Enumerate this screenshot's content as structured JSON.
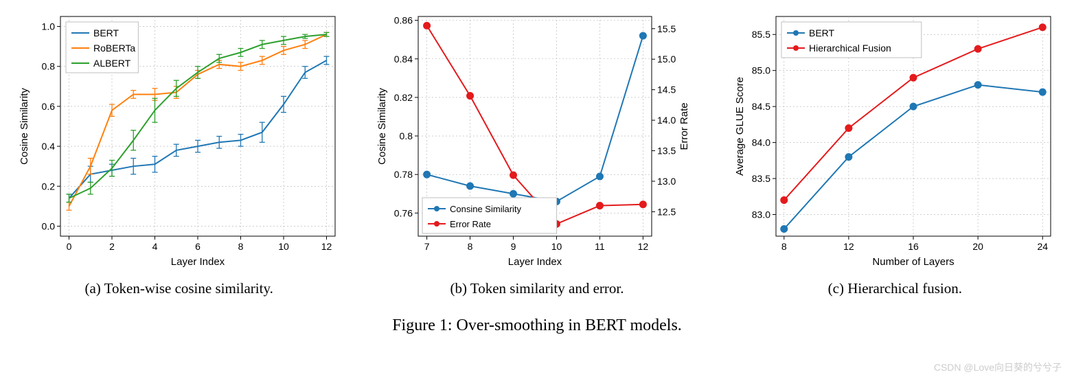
{
  "figure_caption": "Figure 1: Over-smoothing in BERT models.",
  "watermark": "CSDN @Love向日葵的兮兮子",
  "panel_a": {
    "subcaption": "(a)  Token-wise cosine similarity.",
    "type": "line-errorbar",
    "xlabel": "Layer Index",
    "ylabel": "Cosine Similarity",
    "x_ticks": [
      0,
      2,
      4,
      6,
      8,
      10,
      12
    ],
    "y_ticks": [
      0.0,
      0.2,
      0.4,
      0.6,
      0.8,
      1.0
    ],
    "xlim": [
      -0.4,
      12.4
    ],
    "ylim": [
      -0.05,
      1.05
    ],
    "background_color": "#ffffff",
    "grid_color": "#b0b0b0",
    "axis_fontsize": 14,
    "label_fontsize": 15,
    "legend_fontsize": 14,
    "legend_pos": "upper-left",
    "series": [
      {
        "name": "BERT",
        "color": "#1f77b4",
        "linewidth": 2,
        "marker": "none",
        "x": [
          0,
          1,
          2,
          3,
          4,
          5,
          6,
          7,
          8,
          9,
          10,
          11,
          12
        ],
        "y": [
          0.14,
          0.26,
          0.28,
          0.3,
          0.31,
          0.38,
          0.4,
          0.42,
          0.43,
          0.47,
          0.61,
          0.77,
          0.83
        ],
        "yerr": [
          0.02,
          0.04,
          0.03,
          0.04,
          0.04,
          0.03,
          0.03,
          0.03,
          0.03,
          0.05,
          0.04,
          0.03,
          0.02
        ]
      },
      {
        "name": "RoBERTa",
        "color": "#ff7f0e",
        "linewidth": 2,
        "marker": "none",
        "x": [
          0,
          1,
          2,
          3,
          4,
          5,
          6,
          7,
          8,
          9,
          10,
          11,
          12
        ],
        "y": [
          0.1,
          0.3,
          0.58,
          0.66,
          0.66,
          0.67,
          0.76,
          0.81,
          0.8,
          0.83,
          0.88,
          0.91,
          0.96
        ],
        "yerr": [
          0.02,
          0.04,
          0.03,
          0.02,
          0.03,
          0.03,
          0.02,
          0.02,
          0.02,
          0.02,
          0.02,
          0.02,
          0.01
        ]
      },
      {
        "name": "ALBERT",
        "color": "#2ca02c",
        "linewidth": 2,
        "marker": "none",
        "x": [
          0,
          1,
          2,
          3,
          4,
          5,
          6,
          7,
          8,
          9,
          10,
          11,
          12
        ],
        "y": [
          0.14,
          0.19,
          0.29,
          0.43,
          0.58,
          0.69,
          0.77,
          0.84,
          0.87,
          0.91,
          0.93,
          0.95,
          0.96
        ],
        "yerr": [
          0.02,
          0.03,
          0.04,
          0.05,
          0.06,
          0.04,
          0.03,
          0.02,
          0.02,
          0.02,
          0.02,
          0.01,
          0.01
        ]
      }
    ]
  },
  "panel_b": {
    "subcaption": "(b)  Token similarity and error.",
    "type": "line-dual-axis",
    "xlabel": "Layer Index",
    "ylabel_left": "Cosine Similarity",
    "ylabel_right": "Error Rate",
    "x_ticks": [
      7,
      8,
      9,
      10,
      11,
      12
    ],
    "y_ticks_left": [
      0.76,
      0.78,
      0.8,
      0.82,
      0.84,
      0.86
    ],
    "y_ticks_right": [
      12.5,
      13.0,
      13.5,
      14.0,
      14.5,
      15.0,
      15.5
    ],
    "xlim": [
      6.8,
      12.2
    ],
    "ylim_left": [
      0.748,
      0.862
    ],
    "ylim_right": [
      12.1,
      15.7
    ],
    "background_color": "#ffffff",
    "grid_color": "#b0b0b0",
    "axis_fontsize": 14,
    "label_fontsize": 15,
    "legend_fontsize": 13,
    "legend_pos": "lower-left",
    "series_left": {
      "name": "Consine Similarity",
      "color": "#1f77b4",
      "linewidth": 2,
      "marker": "circle",
      "marker_size": 5,
      "x": [
        7,
        8,
        9,
        10,
        11,
        12
      ],
      "y": [
        0.78,
        0.774,
        0.77,
        0.766,
        0.779,
        0.852
      ]
    },
    "series_right": {
      "name": "Error Rate",
      "color": "#e41a1c",
      "linewidth": 2,
      "marker": "circle",
      "marker_size": 5,
      "x": [
        7,
        8,
        9,
        10,
        11,
        12
      ],
      "y": [
        15.55,
        14.4,
        13.1,
        12.3,
        12.6,
        12.62
      ]
    }
  },
  "panel_c": {
    "subcaption": "(c)  Hierarchical fusion.",
    "type": "line",
    "xlabel": "Number of Layers",
    "ylabel": "Average GLUE Score",
    "x_ticks": [
      8,
      12,
      16,
      20,
      24
    ],
    "y_ticks": [
      83.0,
      83.5,
      84.0,
      84.5,
      85.0,
      85.5
    ],
    "xlim": [
      7.5,
      24.5
    ],
    "ylim": [
      82.7,
      85.75
    ],
    "background_color": "#ffffff",
    "grid_color": "#b0b0b0",
    "axis_fontsize": 14,
    "label_fontsize": 15,
    "legend_fontsize": 14,
    "legend_pos": "upper-left",
    "series": [
      {
        "name": "BERT",
        "color": "#1f77b4",
        "linewidth": 2,
        "marker": "circle",
        "marker_size": 5,
        "x": [
          8,
          12,
          16,
          20,
          24
        ],
        "y": [
          82.8,
          83.8,
          84.5,
          84.8,
          84.7
        ]
      },
      {
        "name": "Hierarchical Fusion",
        "color": "#e41a1c",
        "linewidth": 2,
        "marker": "circle",
        "marker_size": 5,
        "x": [
          8,
          12,
          16,
          20,
          24
        ],
        "y": [
          83.2,
          84.2,
          84.9,
          85.3,
          85.6
        ]
      }
    ]
  }
}
